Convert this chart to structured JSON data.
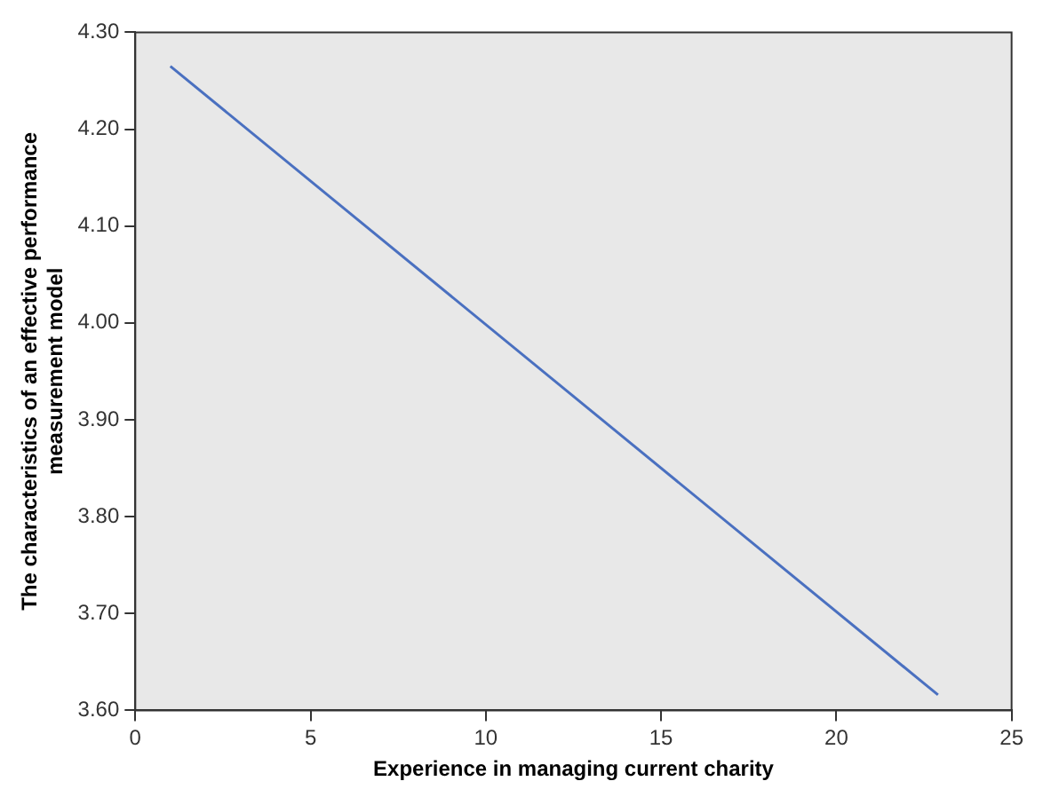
{
  "chart_data": {
    "type": "line",
    "xlabel": "Experience in managing current charity",
    "ylabel": "The characteristics of an effective performance measurement model",
    "x": [
      1,
      22.9
    ],
    "series": [
      {
        "color": "#4a70c0",
        "values": [
          4.265,
          3.616
        ]
      }
    ],
    "xlim": [
      0,
      25
    ],
    "xticks": [
      0,
      5,
      10,
      15,
      20,
      25
    ],
    "ylim": [
      3.6,
      4.3
    ],
    "yticks": [
      {
        "value": 3.6,
        "label": "3.60"
      },
      {
        "value": 3.7,
        "label": "3.70"
      },
      {
        "value": 3.8,
        "label": "3.80"
      },
      {
        "value": 3.9,
        "label": "3.90"
      },
      {
        "value": 4.0,
        "label": "4.00"
      },
      {
        "value": 4.1,
        "label": "4.10"
      },
      {
        "value": 4.2,
        "label": "4.20"
      },
      {
        "value": 4.3,
        "label": "4.30"
      }
    ],
    "grid": false,
    "legend": false,
    "marker": "none",
    "line_style": "solid"
  }
}
